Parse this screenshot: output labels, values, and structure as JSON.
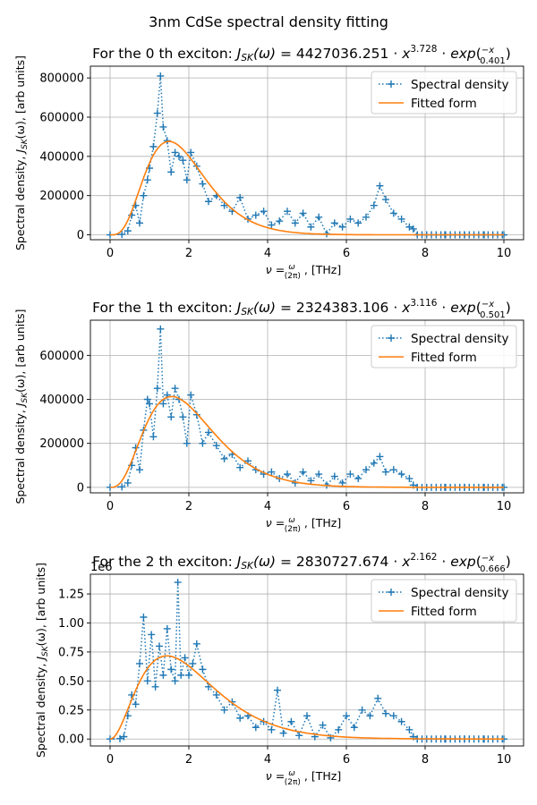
{
  "figure_title": "3nm CdSe spectral density fitting",
  "chart_data": [
    {
      "type": "line",
      "title_prefix": "For the 0 th exciton: ",
      "title_formula": {
        "lhs": "J_SK(ω) = ",
        "coef": "4427036.251",
        "exponent": "3.728",
        "tau": "0.401"
      },
      "xlabel": {
        "prefix": "ν = ",
        "num": "ω",
        "den": "(2π)",
        "suffix": " , [THz]"
      },
      "ylabel": "Spectral density, J_SK(ω), [arb units]",
      "xlim": [
        -0.5,
        10.5
      ],
      "ylim": [
        -25000,
        860000
      ],
      "xticks": [
        0,
        2,
        4,
        6,
        8,
        10
      ],
      "xtick_labels": [
        "0",
        "2",
        "4",
        "6",
        "8",
        "10"
      ],
      "yticks": [
        0,
        200000,
        400000,
        600000,
        800000
      ],
      "ytick_labels": [
        "0",
        "200000",
        "400000",
        "600000",
        "800000"
      ],
      "offset_text": "",
      "grid": true,
      "legend_position": "upper right",
      "series": [
        {
          "name": "Spectral density",
          "color": "#1f77b4",
          "style": "dotted+markers",
          "x": [
            0,
            0.3,
            0.45,
            0.55,
            0.65,
            0.75,
            0.85,
            0.95,
            1.0,
            1.1,
            1.2,
            1.28,
            1.35,
            1.45,
            1.55,
            1.65,
            1.75,
            1.85,
            1.95,
            2.05,
            2.2,
            2.35,
            2.5,
            2.7,
            2.9,
            3.1,
            3.3,
            3.5,
            3.7,
            3.9,
            4.1,
            4.3,
            4.5,
            4.7,
            4.9,
            5.1,
            5.3,
            5.5,
            5.7,
            5.9,
            6.1,
            6.3,
            6.5,
            6.7,
            6.85,
            7.0,
            7.2,
            7.4,
            7.6,
            7.7,
            7.8,
            8.5,
            9.0,
            9.5,
            10.0
          ],
          "y": [
            0,
            2000,
            20000,
            100000,
            150000,
            60000,
            200000,
            280000,
            340000,
            450000,
            620000,
            810000,
            550000,
            480000,
            320000,
            420000,
            400000,
            380000,
            280000,
            420000,
            350000,
            260000,
            170000,
            200000,
            150000,
            120000,
            190000,
            80000,
            100000,
            120000,
            50000,
            70000,
            120000,
            60000,
            110000,
            40000,
            90000,
            5000,
            60000,
            40000,
            80000,
            60000,
            90000,
            150000,
            250000,
            180000,
            110000,
            80000,
            40000,
            30000,
            0,
            0,
            0,
            0,
            0
          ]
        },
        {
          "name": "Fitted form",
          "color": "#ff7f0e",
          "style": "solid",
          "model": {
            "A": 4427036.251,
            "p": 3.728,
            "tau": 0.401
          }
        }
      ]
    },
    {
      "type": "line",
      "title_prefix": "For the 1 th exciton: ",
      "title_formula": {
        "lhs": "J_SK(ω) = ",
        "coef": "2324383.106",
        "exponent": "3.116",
        "tau": "0.501"
      },
      "xlabel": {
        "prefix": "ν = ",
        "num": "ω",
        "den": "(2π)",
        "suffix": " , [THz]"
      },
      "ylabel": "Spectral density, J_SK(ω), [arb units]",
      "xlim": [
        -0.5,
        10.5
      ],
      "ylim": [
        -25000,
        760000
      ],
      "xticks": [
        0,
        2,
        4,
        6,
        8,
        10
      ],
      "xtick_labels": [
        "0",
        "2",
        "4",
        "6",
        "8",
        "10"
      ],
      "yticks": [
        0,
        200000,
        400000,
        600000
      ],
      "ytick_labels": [
        "0",
        "200000",
        "400000",
        "600000"
      ],
      "offset_text": "",
      "grid": true,
      "legend_position": "upper right",
      "series": [
        {
          "name": "Spectral density",
          "color": "#1f77b4",
          "style": "dotted+markers",
          "x": [
            0,
            0.3,
            0.45,
            0.55,
            0.65,
            0.75,
            0.85,
            0.95,
            1.0,
            1.1,
            1.2,
            1.28,
            1.35,
            1.45,
            1.55,
            1.65,
            1.75,
            1.85,
            1.95,
            2.05,
            2.2,
            2.35,
            2.5,
            2.7,
            2.9,
            3.1,
            3.3,
            3.5,
            3.7,
            3.9,
            4.1,
            4.3,
            4.5,
            4.7,
            4.9,
            5.1,
            5.3,
            5.5,
            5.7,
            5.9,
            6.1,
            6.3,
            6.5,
            6.7,
            6.85,
            7.0,
            7.2,
            7.4,
            7.6,
            7.7,
            7.8,
            8.5,
            9.0,
            9.5,
            10.0
          ],
          "y": [
            0,
            2000,
            20000,
            100000,
            180000,
            80000,
            260000,
            400000,
            380000,
            230000,
            450000,
            720000,
            380000,
            420000,
            320000,
            450000,
            400000,
            320000,
            200000,
            420000,
            330000,
            200000,
            250000,
            190000,
            130000,
            150000,
            90000,
            120000,
            80000,
            60000,
            70000,
            40000,
            60000,
            20000,
            70000,
            30000,
            60000,
            10000,
            50000,
            20000,
            60000,
            40000,
            80000,
            110000,
            140000,
            70000,
            80000,
            60000,
            40000,
            10000,
            0,
            0,
            0,
            0,
            0
          ]
        },
        {
          "name": "Fitted form",
          "color": "#ff7f0e",
          "style": "solid",
          "model": {
            "A": 2324383.106,
            "p": 3.116,
            "tau": 0.501
          }
        }
      ]
    },
    {
      "type": "line",
      "title_prefix": "For the 2 th exciton: ",
      "title_formula": {
        "lhs": "J_SK(ω) = ",
        "coef": "2830727.674",
        "exponent": "2.162",
        "tau": "0.666"
      },
      "xlabel": {
        "prefix": "ν = ",
        "num": "ω",
        "den": "(2π)",
        "suffix": " , [THz]"
      },
      "ylabel": "Spectral density, J_SK(ω), [arb units]",
      "xlim": [
        -0.5,
        10.5
      ],
      "ylim": [
        -60000,
        1420000
      ],
      "xticks": [
        0,
        2,
        4,
        6,
        8,
        10
      ],
      "xtick_labels": [
        "0",
        "2",
        "4",
        "6",
        "8",
        "10"
      ],
      "yticks": [
        0,
        250000,
        500000,
        750000,
        1000000,
        1250000
      ],
      "ytick_labels": [
        "0.00",
        "0.25",
        "0.50",
        "0.75",
        "1.00",
        "1.25"
      ],
      "offset_text": "1e6",
      "grid": true,
      "legend_position": "upper right",
      "series": [
        {
          "name": "Spectral density",
          "color": "#1f77b4",
          "style": "dotted+markers",
          "x": [
            0,
            0.25,
            0.35,
            0.45,
            0.55,
            0.65,
            0.75,
            0.85,
            0.95,
            1.05,
            1.15,
            1.25,
            1.35,
            1.45,
            1.55,
            1.65,
            1.72,
            1.8,
            1.9,
            2.0,
            2.1,
            2.2,
            2.35,
            2.5,
            2.7,
            2.9,
            3.1,
            3.3,
            3.5,
            3.7,
            3.9,
            4.1,
            4.25,
            4.4,
            4.6,
            4.8,
            5.0,
            5.2,
            5.4,
            5.6,
            5.8,
            6.0,
            6.2,
            6.4,
            6.6,
            6.8,
            7.0,
            7.2,
            7.4,
            7.6,
            7.7,
            7.8,
            8.5,
            9.0,
            9.5,
            10.0
          ],
          "y": [
            0,
            3000,
            20000,
            200000,
            380000,
            300000,
            650000,
            1050000,
            500000,
            900000,
            450000,
            800000,
            550000,
            950000,
            600000,
            500000,
            1350000,
            550000,
            700000,
            550000,
            650000,
            820000,
            600000,
            450000,
            380000,
            250000,
            320000,
            180000,
            200000,
            100000,
            150000,
            80000,
            420000,
            50000,
            150000,
            30000,
            200000,
            20000,
            120000,
            10000,
            80000,
            200000,
            100000,
            250000,
            200000,
            350000,
            220000,
            200000,
            150000,
            80000,
            20000,
            0,
            0,
            0,
            0,
            0
          ]
        },
        {
          "name": "Fitted form",
          "color": "#ff7f0e",
          "style": "solid",
          "model": {
            "A": 2830727.674,
            "p": 2.162,
            "tau": 0.666
          }
        }
      ]
    }
  ]
}
